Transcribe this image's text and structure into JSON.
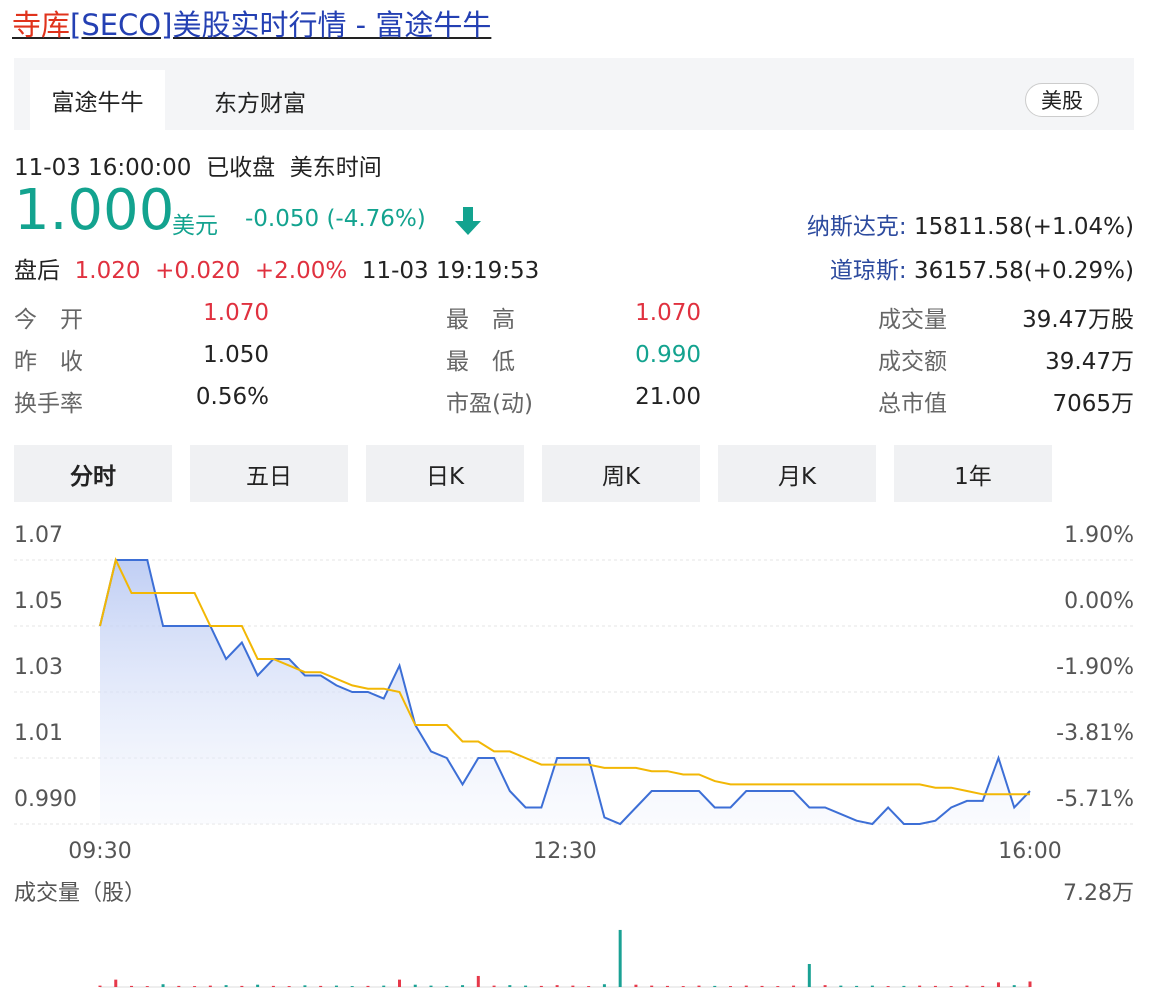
{
  "header": {
    "title_highlight": "寺库",
    "title": "[SECO]美股实时行情 - 富途牛牛"
  },
  "tabs": [
    "富途牛牛",
    "东方财富"
  ],
  "market_badge": "美股",
  "quote": {
    "time": "11-03 16:00:00",
    "status": "已收盘",
    "timezone": "美东时间",
    "price": "1.000",
    "currency": "美元",
    "change": "-0.050 (-4.76%)"
  },
  "after_hours": {
    "label": "盘后",
    "price": "1.020",
    "change": "+0.020",
    "percent": "+2.00%",
    "time": "11-03 19:19:53"
  },
  "indices": [
    {
      "name": "纳斯达克:",
      "value": "15811.58(+1.04%)"
    },
    {
      "name": "道琼斯:",
      "value": "36157.58(+0.29%)"
    }
  ],
  "stats": [
    [
      {
        "label": "今　开",
        "value": "1.070"
      },
      {
        "label": "最　高",
        "value": "1.070"
      },
      {
        "label": "成交量",
        "value": "39.47万股"
      }
    ],
    [
      {
        "label": "昨　收",
        "value": "1.050"
      },
      {
        "label": "最　低",
        "value": "0.990"
      },
      {
        "label": "成交额",
        "value": "39.47万"
      }
    ],
    [
      {
        "label": "换手率",
        "value": "0.56%"
      },
      {
        "label": "市盈(动)",
        "value": "21.00"
      },
      {
        "label": "总市值",
        "value": "7065万"
      }
    ]
  ],
  "periods": [
    "分时",
    "五日",
    "日K",
    "周K",
    "月K",
    "1年"
  ],
  "chart_data": {
    "type": "line",
    "x_labels": [
      "09:30",
      "12:30",
      "16:00"
    ],
    "ylim": [
      0.99,
      1.07
    ],
    "yticks": [
      1.07,
      1.05,
      1.03,
      1.01,
      {
        "value": 0.99,
        "label": "0.990"
      }
    ],
    "y2lim": [
      -5.71,
      1.9
    ],
    "y2ticks": [
      {
        "value": 1.9,
        "label": "1.90%"
      },
      {
        "value": 0,
        "label": "0.00%"
      },
      {
        "value": -1.9,
        "label": "-1.90%"
      },
      {
        "value": -3.81,
        "label": "-3.81%"
      },
      {
        "value": -5.71,
        "label": "-5.71%"
      }
    ],
    "grid": true,
    "series": [
      {
        "color": "#3d6fd6",
        "values": [
          1.05,
          1.07,
          1.07,
          1.07,
          1.05,
          1.05,
          1.05,
          1.05,
          1.04,
          1.045,
          1.035,
          1.04,
          1.04,
          1.035,
          1.035,
          1.032,
          1.03,
          1.03,
          1.028,
          1.038,
          1.02,
          1.012,
          1.01,
          1.002,
          1.01,
          1.01,
          1.0,
          0.995,
          0.995,
          1.01,
          1.01,
          1.01,
          0.992,
          0.99,
          0.995,
          1.0,
          1.0,
          1.0,
          1.0,
          0.995,
          0.995,
          1.0,
          1.0,
          1.0,
          1.0,
          0.995,
          0.995,
          0.993,
          0.991,
          0.99,
          0.995,
          0.99,
          0.99,
          0.991,
          0.995,
          0.997,
          0.997,
          1.01,
          0.995,
          1.0
        ]
      },
      {
        "color": "#f2b705",
        "values": [
          1.05,
          1.07,
          1.06,
          1.06,
          1.06,
          1.06,
          1.06,
          1.05,
          1.05,
          1.05,
          1.04,
          1.04,
          1.038,
          1.036,
          1.036,
          1.034,
          1.032,
          1.031,
          1.031,
          1.03,
          1.02,
          1.02,
          1.02,
          1.015,
          1.015,
          1.012,
          1.012,
          1.01,
          1.008,
          1.008,
          1.008,
          1.008,
          1.007,
          1.007,
          1.007,
          1.006,
          1.006,
          1.005,
          1.005,
          1.003,
          1.002,
          1.002,
          1.002,
          1.002,
          1.002,
          1.002,
          1.002,
          1.002,
          1.002,
          1.002,
          1.002,
          1.002,
          1.002,
          1.001,
          1.001,
          1.0,
          0.999,
          0.999,
          0.999,
          0.999
        ]
      }
    ],
    "volume": {
      "label": "成交量（股）",
      "ylim": [
        0,
        72800
      ],
      "yticks": [
        {
          "value": 72800,
          "label": "7.28万"
        }
      ],
      "up_color": "#e6394a",
      "down_color": "#1aa194",
      "values": [
        1500,
        8000,
        1200,
        1000,
        3000,
        1200,
        1000,
        1500,
        2000,
        1200,
        2500,
        1200,
        1000,
        1800,
        1200,
        1500,
        1000,
        1200,
        1500,
        8000,
        2500,
        1500,
        1200,
        2000,
        12000,
        1500,
        2000,
        1500,
        1200,
        2000,
        1500,
        1000,
        3000,
        62000,
        2500,
        1500,
        1200,
        1000,
        1500,
        1200,
        1000,
        1500,
        1200,
        1000,
        1500,
        25000,
        2000,
        1500,
        1200,
        1500,
        1000,
        1200,
        1500,
        1200,
        1000,
        1500,
        1200,
        5000,
        2000,
        6000
      ]
    }
  }
}
